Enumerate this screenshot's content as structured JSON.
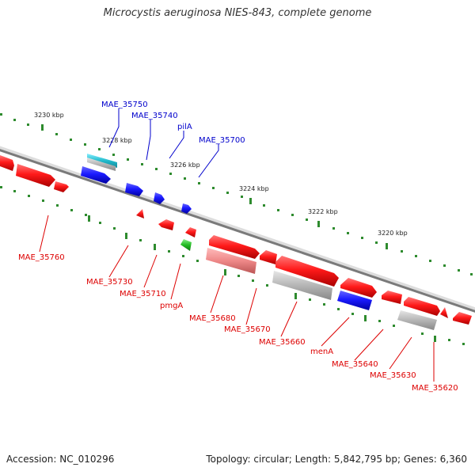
{
  "title": "Microcystis aeruginosa NIES-843, complete genome",
  "footer": {
    "accession": "Accession: NC_010296",
    "summary": "Topology: circular; Length: 5,842,795 bp; Genes: 6,360"
  },
  "colors": {
    "backbone": "#808080",
    "tick": "#2e8b2e",
    "label_blue": "#0000cc",
    "label_red": "#dd0000",
    "cds_red": "#ff1a1a",
    "cds_blue": "#1a1aff",
    "cds_green": "#22bb22",
    "rna_cyan": "#22bbcc",
    "gene_gray": "#b5b5b5",
    "gene_pink": "#ee8888"
  },
  "scale_labels": [
    "3230 kbp",
    "3228 kbp",
    "3226 kbp",
    "3224 kbp",
    "3222 kbp",
    "3220 kbp"
  ],
  "gene_labels_top": [
    "MAE_35750",
    "MAE_35740",
    "pilA",
    "MAE_35700"
  ],
  "gene_labels_bottom": [
    "MAE_35760",
    "MAE_35730",
    "MAE_35710",
    "pmgA",
    "MAE_35680",
    "MAE_35670",
    "MAE_35660",
    "menA",
    "MAE_35640",
    "MAE_35630",
    "MAE_35620"
  ]
}
